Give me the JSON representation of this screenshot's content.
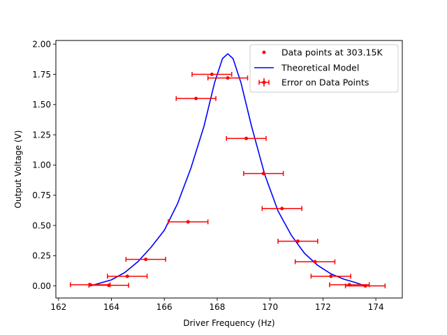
{
  "chart_data": {
    "type": "scatter",
    "title": "",
    "xlabel": "Driver Frequency (Hz)",
    "ylabel": "Output Voltage (V)",
    "xlim": [
      161.9,
      175.0
    ],
    "ylim": [
      -0.1,
      2.03
    ],
    "xticks": [
      "162",
      "164",
      "166",
      "168",
      "170",
      "172",
      "174"
    ],
    "yticks": [
      "0.00",
      "0.25",
      "0.50",
      "0.75",
      "1.00",
      "1.25",
      "1.50",
      "1.75",
      "2.00"
    ],
    "grid": false,
    "legend_position": "top-right",
    "colors": {
      "data": "#ff0000",
      "model": "#0000ff"
    },
    "series": [
      {
        "name": "Data points at 303.15K",
        "kind": "points",
        "x_error": 0.75,
        "points": [
          {
            "x": 163.2,
            "y": 0.01
          },
          {
            "x": 163.9,
            "y": 0.005
          },
          {
            "x": 164.6,
            "y": 0.08
          },
          {
            "x": 165.3,
            "y": 0.22
          },
          {
            "x": 166.9,
            "y": 0.53
          },
          {
            "x": 167.2,
            "y": 1.55
          },
          {
            "x": 167.8,
            "y": 1.75
          },
          {
            "x": 168.4,
            "y": 1.72
          },
          {
            "x": 169.1,
            "y": 1.22
          },
          {
            "x": 169.75,
            "y": 0.93
          },
          {
            "x": 170.45,
            "y": 0.64
          },
          {
            "x": 171.05,
            "y": 0.37
          },
          {
            "x": 171.7,
            "y": 0.2
          },
          {
            "x": 172.3,
            "y": 0.08
          },
          {
            "x": 173.0,
            "y": 0.01
          },
          {
            "x": 173.6,
            "y": 0.0
          }
        ]
      },
      {
        "name": "Theoretical Model",
        "kind": "line",
        "points": [
          {
            "x": 163.2,
            "y": 0.0
          },
          {
            "x": 164.0,
            "y": 0.05
          },
          {
            "x": 164.5,
            "y": 0.11
          },
          {
            "x": 165.0,
            "y": 0.2
          },
          {
            "x": 165.5,
            "y": 0.32
          },
          {
            "x": 166.0,
            "y": 0.46
          },
          {
            "x": 166.5,
            "y": 0.68
          },
          {
            "x": 167.0,
            "y": 0.97
          },
          {
            "x": 167.5,
            "y": 1.32
          },
          {
            "x": 167.9,
            "y": 1.68
          },
          {
            "x": 168.2,
            "y": 1.88
          },
          {
            "x": 168.4,
            "y": 1.92
          },
          {
            "x": 168.6,
            "y": 1.88
          },
          {
            "x": 168.9,
            "y": 1.68
          },
          {
            "x": 169.3,
            "y": 1.32
          },
          {
            "x": 169.8,
            "y": 0.92
          },
          {
            "x": 170.3,
            "y": 0.62
          },
          {
            "x": 170.8,
            "y": 0.42
          },
          {
            "x": 171.3,
            "y": 0.27
          },
          {
            "x": 171.8,
            "y": 0.17
          },
          {
            "x": 172.3,
            "y": 0.1
          },
          {
            "x": 172.8,
            "y": 0.055
          },
          {
            "x": 173.2,
            "y": 0.03
          },
          {
            "x": 173.6,
            "y": 0.0
          }
        ]
      }
    ],
    "legend": [
      {
        "label": "Data points at 303.15K",
        "style": "marker"
      },
      {
        "label": "Theoretical Model",
        "style": "line"
      },
      {
        "label": "Error on Data Points",
        "style": "errorbar"
      }
    ]
  }
}
